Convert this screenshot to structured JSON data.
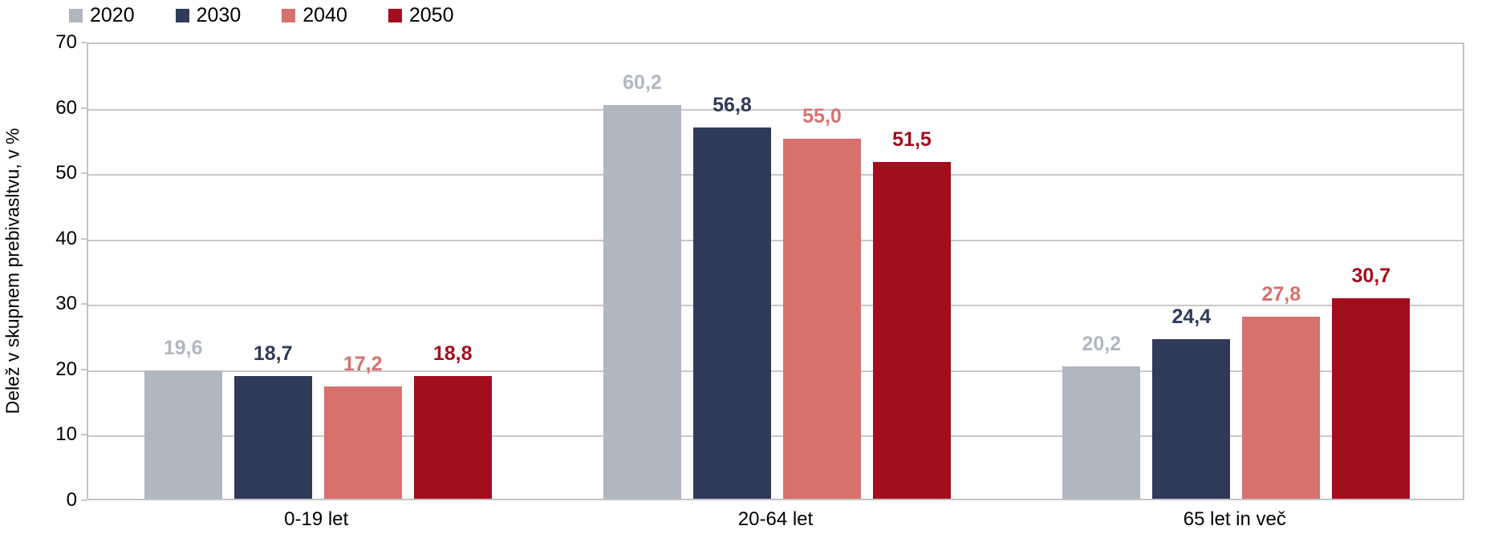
{
  "chart_data": {
    "type": "bar",
    "title": "",
    "xlabel": "",
    "ylabel": "Delež v skupnem prebivasltvu, v %",
    "ylim": [
      0,
      70
    ],
    "yticks": [
      0,
      10,
      20,
      30,
      40,
      50,
      60,
      70
    ],
    "grid": true,
    "legend_position": "top-left",
    "categories": [
      "0-19 let",
      "20-64 let",
      "65 let in več"
    ],
    "series": [
      {
        "name": "2020",
        "color": "#b1b7c0",
        "values": [
          19.6,
          60.2,
          20.2
        ],
        "value_labels": [
          "19,6",
          "60,2",
          "20,2"
        ]
      },
      {
        "name": "2030",
        "color": "#2f3b59",
        "values": [
          18.7,
          56.8,
          24.4
        ],
        "value_labels": [
          "18,7",
          "56,8",
          "24,4"
        ]
      },
      {
        "name": "2040",
        "color": "#d6716e",
        "values": [
          17.2,
          55.0,
          27.8
        ],
        "value_labels": [
          "17,2",
          "55,0",
          "27,8"
        ]
      },
      {
        "name": "2050",
        "color": "#a30e1c",
        "values": [
          18.8,
          51.5,
          30.7
        ],
        "value_labels": [
          "18,8",
          "51,5",
          "30,7"
        ]
      }
    ],
    "colors": {
      "gridline": "#c8c8c8",
      "plot_border": "#c3c3c3",
      "axis_text": "#000000"
    }
  }
}
